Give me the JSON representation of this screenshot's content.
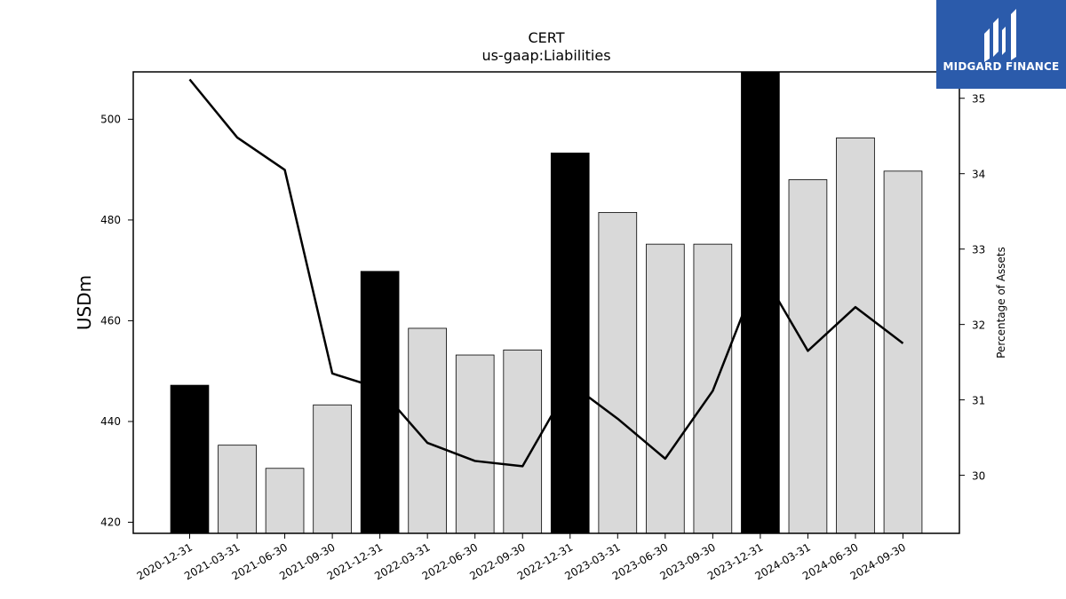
{
  "chart_data": {
    "type": "bar+line",
    "title": "CERT",
    "subtitle": "us-gaap:Liabilities",
    "ylabel": "USDm",
    "y2label": "Percentage of Assets",
    "categories": [
      "2020-12-31",
      "2021-03-31",
      "2021-06-30",
      "2021-09-30",
      "2021-12-31",
      "2022-03-31",
      "2022-06-30",
      "2022-09-30",
      "2022-12-31",
      "2023-03-31",
      "2023-06-30",
      "2023-09-30",
      "2023-12-31",
      "2024-03-31",
      "2024-06-30",
      "2024-09-30"
    ],
    "bars": {
      "name": "Liabilities",
      "values": [
        447.2,
        435.3,
        430.7,
        443.3,
        469.8,
        458.5,
        453.2,
        454.2,
        493.3,
        481.5,
        475.2,
        475.2,
        509.6,
        488.0,
        496.3,
        489.7
      ],
      "highlight": [
        true,
        false,
        false,
        false,
        true,
        false,
        false,
        false,
        true,
        false,
        false,
        false,
        true,
        false,
        false,
        false
      ],
      "highlight_color": "#000000",
      "color": "#d9d9d9"
    },
    "line": {
      "name": "Percentage of Assets",
      "values": [
        35.25,
        34.48,
        34.05,
        31.35,
        31.15,
        30.43,
        30.19,
        30.12,
        31.22,
        30.75,
        30.22,
        31.12,
        32.73,
        31.65,
        32.23,
        31.75
      ],
      "color": "#000000"
    },
    "ylim": [
      417.8,
      509.4
    ],
    "y2lim": [
      29.23,
      35.35
    ],
    "yticks": [
      420,
      440,
      460,
      480,
      500
    ],
    "y2ticks": [
      30,
      31,
      32,
      33,
      34,
      35
    ],
    "grid": false
  },
  "logo": {
    "text": "MIDGARD FINANCE"
  }
}
